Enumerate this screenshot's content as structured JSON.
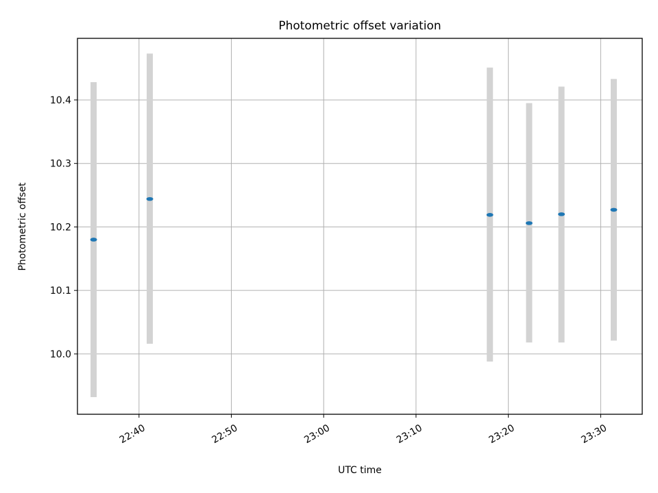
{
  "chart_data": {
    "type": "scatter",
    "title": "Photometric offset variation",
    "xlabel": "UTC time",
    "ylabel": "Photometric offset",
    "x_tick_labels": [
      "22:40",
      "22:50",
      "23:00",
      "23:10",
      "23:20",
      "23:30"
    ],
    "y_tick_labels": [
      "10.0",
      "10.1",
      "10.2",
      "10.3",
      "10.4"
    ],
    "y_ticks": [
      10.0,
      10.1,
      10.2,
      10.3,
      10.4
    ],
    "x_ticks": [
      "22:40",
      "22:50",
      "23:00",
      "23:10",
      "23:20",
      "23:30"
    ],
    "xlim": [
      "22:33:20",
      "23:34:30"
    ],
    "ylim": [
      9.905,
      10.497
    ],
    "grid": true,
    "series": [
      {
        "marker_color": "#1f77b4",
        "errorbar_color": "#d3d3d3",
        "points": [
          {
            "x": "22:35:05",
            "y": 10.18,
            "y_low": 9.932,
            "y_high": 10.428
          },
          {
            "x": "22:41:10",
            "y": 10.244,
            "y_low": 10.016,
            "y_high": 10.473
          },
          {
            "x": "23:18:00",
            "y": 10.219,
            "y_low": 9.988,
            "y_high": 10.451
          },
          {
            "x": "23:22:15",
            "y": 10.206,
            "y_low": 10.018,
            "y_high": 10.395
          },
          {
            "x": "23:25:45",
            "y": 10.22,
            "y_low": 10.018,
            "y_high": 10.421
          },
          {
            "x": "23:31:25",
            "y": 10.227,
            "y_low": 10.021,
            "y_high": 10.433
          }
        ]
      }
    ]
  }
}
